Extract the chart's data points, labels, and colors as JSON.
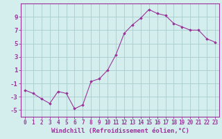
{
  "x": [
    0,
    1,
    2,
    3,
    4,
    5,
    6,
    7,
    8,
    9,
    10,
    11,
    12,
    13,
    14,
    15,
    16,
    17,
    18,
    19,
    20,
    21,
    22,
    23
  ],
  "y": [
    -2.0,
    -2.5,
    -3.3,
    -4.0,
    -2.2,
    -2.5,
    -4.8,
    -4.2,
    -0.7,
    -0.3,
    1.0,
    3.3,
    6.5,
    7.8,
    8.8,
    10.1,
    9.5,
    9.2,
    8.0,
    7.5,
    7.0,
    7.0,
    5.7,
    5.2
  ],
  "xlim": [
    -0.5,
    23.5
  ],
  "ylim": [
    -6,
    11
  ],
  "yticks": [
    -5,
    -3,
    -1,
    1,
    3,
    5,
    7,
    9
  ],
  "xticks": [
    0,
    1,
    2,
    3,
    4,
    5,
    6,
    7,
    8,
    9,
    10,
    11,
    12,
    13,
    14,
    15,
    16,
    17,
    18,
    19,
    20,
    21,
    22,
    23
  ],
  "xlabel": "Windchill (Refroidissement éolien,°C)",
  "line_color": "#993399",
  "marker": "D",
  "marker_size": 1.8,
  "bg_color": "#d4eeee",
  "grid_color": "#aacccc",
  "axis_color": "#993399",
  "label_color": "#993399",
  "tick_color": "#993399",
  "xlabel_fontsize": 6.5,
  "ytick_fontsize": 6.5,
  "xtick_fontsize": 5.5
}
